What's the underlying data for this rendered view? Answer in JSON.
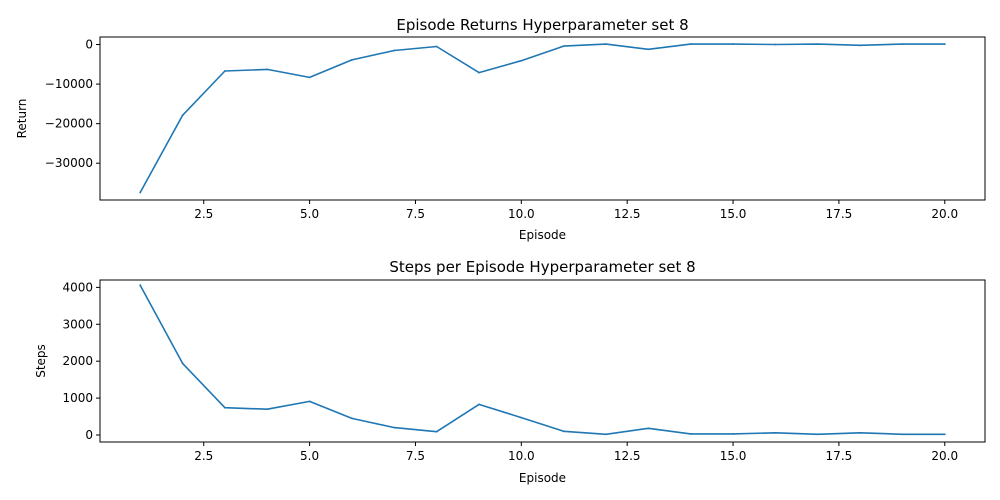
{
  "colors": {
    "series": "#1f77b4"
  },
  "chart_data": [
    {
      "type": "line",
      "title": "Episode Returns Hyperparameter set 8",
      "xlabel": "Episode",
      "ylabel": "Return",
      "xlim": [
        0.05,
        20.95
      ],
      "ylim": [
        -39300,
        1900
      ],
      "xticks": [
        2.5,
        5.0,
        7.5,
        10.0,
        12.5,
        15.0,
        17.5,
        20.0
      ],
      "xtick_labels": [
        "2.5",
        "5.0",
        "7.5",
        "10.0",
        "12.5",
        "15.0",
        "17.5",
        "20.0"
      ],
      "yticks": [
        0,
        -10000,
        -20000,
        -30000
      ],
      "ytick_labels": [
        "0",
        "−10000",
        "−20000",
        "−30000"
      ],
      "grid": false,
      "legend": "none",
      "x": [
        1,
        2,
        3,
        4,
        5,
        6,
        7,
        8,
        9,
        10,
        11,
        12,
        13,
        14,
        15,
        16,
        17,
        18,
        19,
        20
      ],
      "series": [
        {
          "values": [
            -37400,
            -17900,
            -6700,
            -6300,
            -8300,
            -3900,
            -1500,
            -500,
            -7100,
            -4100,
            -400,
            100,
            -1200,
            100,
            100,
            0,
            100,
            -200,
            100,
            100
          ]
        }
      ]
    },
    {
      "type": "line",
      "title": "Steps per Episode Hyperparameter set 8",
      "xlabel": "Episode",
      "ylabel": "Steps",
      "xlim": [
        0.05,
        20.95
      ],
      "ylim": [
        -190,
        4200
      ],
      "xticks": [
        2.5,
        5.0,
        7.5,
        10.0,
        12.5,
        15.0,
        17.5,
        20.0
      ],
      "xtick_labels": [
        "2.5",
        "5.0",
        "7.5",
        "10.0",
        "12.5",
        "15.0",
        "17.5",
        "20.0"
      ],
      "yticks": [
        0,
        1000,
        2000,
        3000,
        4000
      ],
      "ytick_labels": [
        "0",
        "1000",
        "2000",
        "3000",
        "4000"
      ],
      "grid": false,
      "legend": "none",
      "x": [
        1,
        2,
        3,
        4,
        5,
        6,
        7,
        8,
        9,
        10,
        11,
        12,
        13,
        14,
        15,
        16,
        17,
        18,
        19,
        20
      ],
      "series": [
        {
          "values": [
            4060,
            1940,
            740,
            700,
            910,
            450,
            200,
            90,
            830,
            470,
            100,
            20,
            180,
            30,
            30,
            60,
            20,
            60,
            20,
            20
          ]
        }
      ]
    }
  ]
}
